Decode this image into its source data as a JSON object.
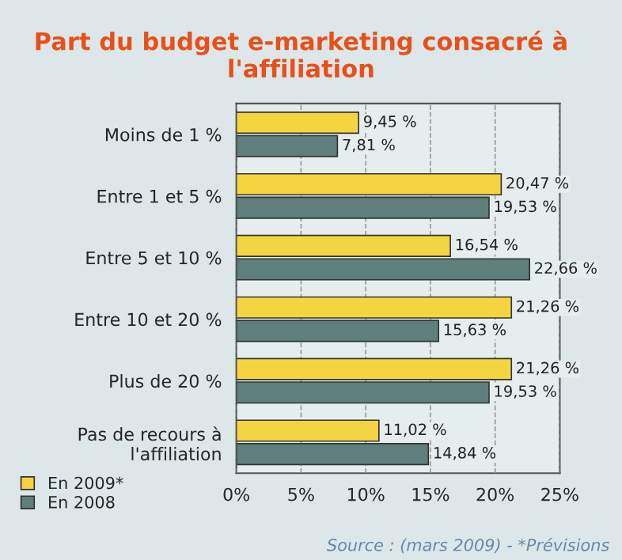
{
  "chart_data": {
    "type": "bar",
    "orientation": "horizontal",
    "title": "Part du budget e-marketing consacré à\nl'affiliation",
    "categories": [
      "Moins de 1 %",
      "Entre 1 et 5 %",
      "Entre 5 et 10 %",
      "Entre 10 et 20 %",
      "Plus de 20 %",
      "Pas de recours à\nl'affiliation"
    ],
    "series": [
      {
        "name": "En 2009*",
        "color": "#f5d442",
        "values": [
          9.45,
          20.47,
          16.54,
          21.26,
          21.26,
          11.02
        ],
        "value_labels": [
          "9,45 %",
          "20,47 %",
          "16,54 %",
          "21,26 %",
          "21,26 %",
          "11,02 %"
        ]
      },
      {
        "name": "En 2008",
        "color": "#5f7f7c",
        "values": [
          7.81,
          19.53,
          22.66,
          15.63,
          19.53,
          14.84
        ],
        "value_labels": [
          "7,81 %",
          "19,53 %",
          "22,66 %",
          "15,63 %",
          "19,53 %",
          "14,84 %"
        ]
      }
    ],
    "xlim": [
      0,
      25
    ],
    "xticks": [
      {
        "value": 0,
        "label": "0%"
      },
      {
        "value": 5,
        "label": "5%"
      },
      {
        "value": 10,
        "label": "10%"
      },
      {
        "value": 15,
        "label": "15%"
      },
      {
        "value": 20,
        "label": "20%"
      },
      {
        "value": 25,
        "label": "25%"
      }
    ],
    "grid": "x",
    "legend": "bottom left",
    "annotations": [
      "Source : (mars 2009) - *Prévisions"
    ]
  }
}
